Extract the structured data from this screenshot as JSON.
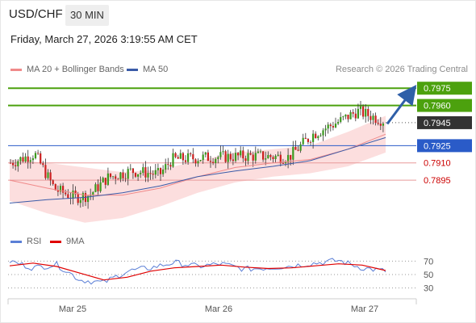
{
  "header": {
    "symbol": "USD/CHF",
    "interval": "30 MIN",
    "datetime": "Friday, March 27, 2026 3:19:55 AM CET"
  },
  "legend": {
    "ma20_label": "MA 20 + Bollinger Bands",
    "ma50_label": "MA 50",
    "credit": "Research © 2026 Trading Central",
    "ma20_color": "#f08a8a",
    "ma50_color": "#3a5ba8"
  },
  "rsi_legend": {
    "rsi_label": "RSI",
    "ma9_label": "9MA",
    "rsi_color": "#5b7fd6",
    "ma9_color": "#e00000"
  },
  "chart_data": [
    {
      "type": "candlestick",
      "title": "USD/CHF",
      "ylim": [
        0.7855,
        0.7985
      ],
      "x_ticks": [
        "Mar 25",
        "Mar 26",
        "Mar 27"
      ],
      "current_price": "0.7945",
      "levels": [
        {
          "label": "0.7975",
          "value": 0.7975,
          "kind": "resistance",
          "color": "#4ca10e"
        },
        {
          "label": "0.7960",
          "value": 0.796,
          "kind": "resistance",
          "color": "#4ca10e"
        },
        {
          "label": "0.7945",
          "value": 0.7945,
          "kind": "current",
          "color": "#333333"
        },
        {
          "label": "0.7925",
          "value": 0.7925,
          "kind": "pivot",
          "color": "#2a5bc8"
        },
        {
          "label": "0.7910",
          "value": 0.791,
          "kind": "support",
          "color": "#cc0000"
        },
        {
          "label": "0.7895",
          "value": 0.7895,
          "kind": "support",
          "color": "#cc0000"
        }
      ],
      "series": [
        {
          "name": "MA 20 + Bollinger Bands",
          "values": [
            0.7895,
            0.7888,
            0.7882,
            0.7882,
            0.7888,
            0.7898,
            0.7906,
            0.791,
            0.7913,
            0.7922,
            0.7935
          ]
        },
        {
          "name": "MA 50",
          "values": [
            0.7875,
            0.7878,
            0.788,
            0.7884,
            0.789,
            0.7898,
            0.7903,
            0.7907,
            0.7912,
            0.7922,
            0.7932
          ]
        }
      ],
      "trend_arrow": {
        "from": 0.7944,
        "to": 0.7974,
        "direction": "up"
      }
    },
    {
      "type": "line",
      "title": "RSI",
      "ylim": [
        20,
        80
      ],
      "y_ticks": [
        30,
        50,
        70
      ],
      "series": [
        {
          "name": "RSI",
          "values": [
            70,
            60,
            65,
            42,
            38,
            55,
            60,
            68,
            62,
            66,
            58,
            60,
            63,
            67,
            71,
            60,
            55
          ]
        },
        {
          "name": "9MA",
          "values": [
            63,
            67,
            62,
            52,
            42,
            46,
            55,
            60,
            62,
            64,
            61,
            59,
            60,
            63,
            66,
            64,
            56
          ]
        }
      ]
    }
  ]
}
